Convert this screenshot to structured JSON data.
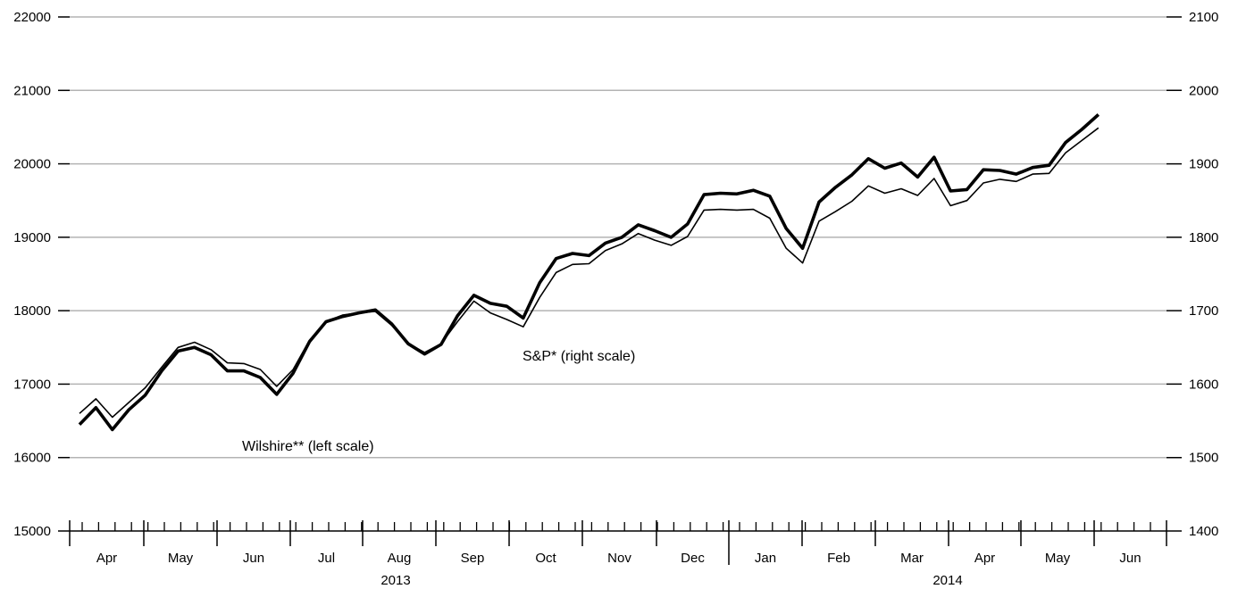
{
  "chart_data": {
    "type": "line",
    "x_unit": "weekly observations",
    "left_axis": {
      "range": [
        15000,
        22000
      ],
      "ticks": [
        15000,
        16000,
        17000,
        18000,
        19000,
        20000,
        21000,
        22000
      ]
    },
    "right_axis": {
      "range": [
        1400,
        2100
      ],
      "ticks": [
        1400,
        1500,
        1600,
        1700,
        1800,
        1900,
        2000,
        2100
      ]
    },
    "month_labels": [
      "Apr",
      "May",
      "Jun",
      "Jul",
      "Aug",
      "Sep",
      "Oct",
      "Nov",
      "Dec",
      "Jan",
      "Feb",
      "Mar",
      "Apr",
      "May",
      "Jun"
    ],
    "year_labels": [
      "2013",
      "2014"
    ],
    "grid": true,
    "series": [
      {
        "name": "Wilshire** (left scale)",
        "axis": "left",
        "values": [
          16450,
          16680,
          16380,
          16650,
          16850,
          17180,
          17450,
          17500,
          17400,
          17180,
          17180,
          17090,
          16860,
          17150,
          17580,
          17850,
          17920,
          17970,
          18010,
          17820,
          17550,
          17410,
          17540,
          17930,
          18210,
          18100,
          18060,
          17900,
          18380,
          18710,
          18780,
          18750,
          18920,
          19000,
          19170,
          19090,
          19000,
          19180,
          19580,
          19600,
          19590,
          19640,
          19560,
          19120,
          18850,
          19480,
          19680,
          19850,
          20070,
          19940,
          20010,
          19820,
          20090,
          19630,
          19650,
          19920,
          19910,
          19860,
          19950,
          19980,
          20290,
          20470,
          20670
        ]
      },
      {
        "name": "S&P* (right scale)",
        "axis": "right",
        "values": [
          1560,
          1580,
          1555,
          1575,
          1595,
          1623,
          1650,
          1657,
          1647,
          1629,
          1628,
          1620,
          1597,
          1620,
          1660,
          1685,
          1694,
          1697,
          1699,
          1680,
          1655,
          1643,
          1655,
          1685,
          1713,
          1697,
          1688,
          1678,
          1718,
          1752,
          1763,
          1764,
          1782,
          1791,
          1805,
          1796,
          1789,
          1801,
          1837,
          1838,
          1837,
          1838,
          1826,
          1785,
          1765,
          1822,
          1835,
          1849,
          1870,
          1860,
          1866,
          1857,
          1880,
          1843,
          1850,
          1874,
          1879,
          1876,
          1886,
          1887,
          1915,
          1932,
          1949
        ]
      }
    ],
    "annotations": [
      "S&P* (right scale)",
      "Wilshire** (left scale)"
    ]
  },
  "annotations": {
    "sp": "S&P* (right scale)",
    "wilshire": "Wilshire** (left scale)"
  }
}
